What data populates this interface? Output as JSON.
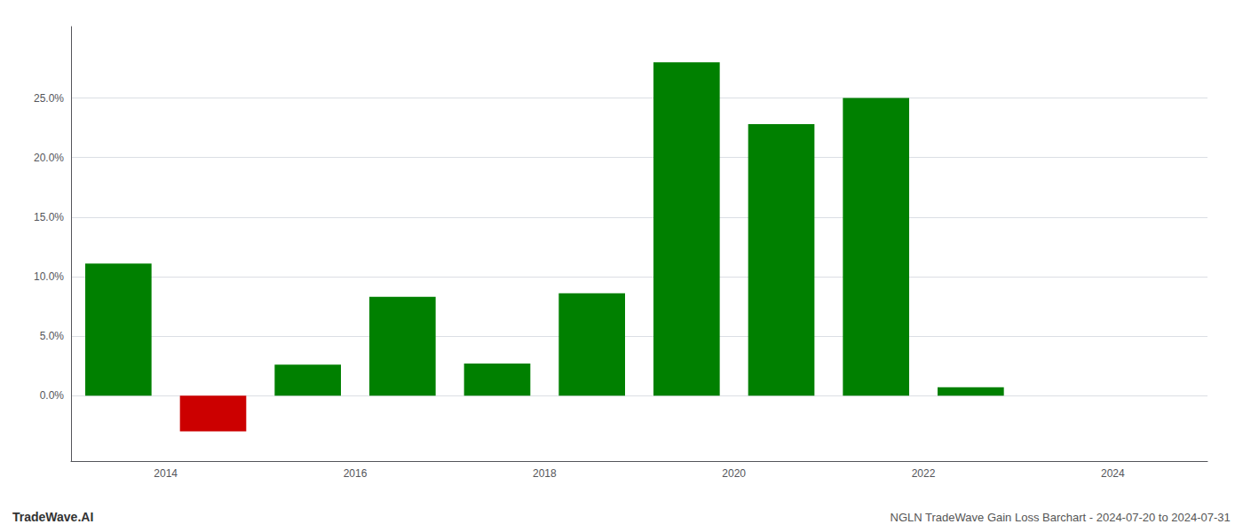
{
  "chart_data": {
    "type": "bar",
    "x": [
      2013.5,
      2014.5,
      2015.5,
      2016.5,
      2017.5,
      2018.5,
      2019.5,
      2020.5,
      2021.5,
      2022.5,
      2023.5
    ],
    "values": [
      0.111,
      -0.03,
      0.026,
      0.083,
      0.027,
      0.086,
      0.28,
      0.228,
      0.25,
      0.007,
      0.0
    ],
    "colors": [
      "#008000",
      "#cc0000",
      "#008000",
      "#008000",
      "#008000",
      "#008000",
      "#008000",
      "#008000",
      "#008000",
      "#008000",
      "#008000"
    ],
    "xlim": [
      2013.0,
      2025.0
    ],
    "xticks": [
      2014,
      2016,
      2018,
      2020,
      2022,
      2024
    ],
    "ylim": [
      -0.055,
      0.31
    ],
    "yticks": [
      {
        "value": 0.0,
        "label": "0.0%"
      },
      {
        "value": 0.05,
        "label": "5.0%"
      },
      {
        "value": 0.1,
        "label": "10.0%"
      },
      {
        "value": 0.15,
        "label": "15.0%"
      },
      {
        "value": 0.2,
        "label": "20.0%"
      },
      {
        "value": 0.25,
        "label": "25.0%"
      }
    ],
    "grid": true,
    "annotations": [
      "TradeWave.AI",
      "NGLN TradeWave Gain Loss Barchart - 2024-07-20 to 2024-07-31"
    ]
  }
}
